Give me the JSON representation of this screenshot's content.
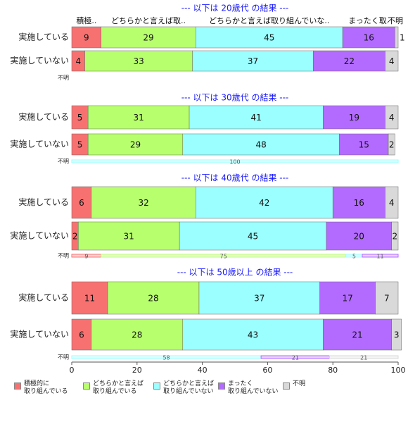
{
  "chart_data": [
    {
      "type": "stacked-barh",
      "title": "--- 以下は 20歳代 の結果 ---",
      "segment_labels": [
        "積極..",
        "どちらかと言えば取..",
        "どちらかと言えば取り組んでいな..",
        "まったく取.",
        "不明"
      ],
      "categories": [
        "実施している",
        "実施していない",
        "不明"
      ],
      "xlim": [
        0,
        100
      ],
      "series": [
        {
          "name": "積極的に\n取り組んでいる",
          "color": "#f87171",
          "values": [
            9,
            4,
            null
          ]
        },
        {
          "name": "どちらかと言えば\n取り組んでいる",
          "color": "#b8ff6e",
          "values": [
            29,
            33,
            null
          ]
        },
        {
          "name": "どちらかと言えば\n取り組んでいない",
          "color": "#9bffff",
          "values": [
            45,
            37,
            null
          ]
        },
        {
          "name": "まったく\n取り組んでいない",
          "color": "#b36bff",
          "values": [
            16,
            22,
            null
          ]
        },
        {
          "name": "不明",
          "color": "#d9d9d9",
          "values": [
            1,
            4,
            null
          ]
        }
      ]
    },
    {
      "type": "stacked-barh",
      "title": "--- 以下は 30歳代 の結果 ---",
      "categories": [
        "実施している",
        "実施していない",
        "不明"
      ],
      "xlim": [
        0,
        100
      ],
      "series": [
        {
          "color": "#f87171",
          "values": [
            5,
            5,
            null
          ]
        },
        {
          "color": "#b8ff6e",
          "values": [
            31,
            29,
            null
          ]
        },
        {
          "color": "#9bffff",
          "values": [
            41,
            48,
            100
          ]
        },
        {
          "color": "#b36bff",
          "values": [
            19,
            15,
            null
          ]
        },
        {
          "color": "#d9d9d9",
          "values": [
            4,
            2,
            null
          ]
        }
      ]
    },
    {
      "type": "stacked-barh",
      "title": "--- 以下は 40歳代 の結果 ---",
      "categories": [
        "実施している",
        "実施していない",
        "不明"
      ],
      "xlim": [
        0,
        100
      ],
      "series": [
        {
          "color": "#f87171",
          "values": [
            6,
            2,
            9
          ]
        },
        {
          "color": "#b8ff6e",
          "values": [
            32,
            31,
            75
          ]
        },
        {
          "color": "#9bffff",
          "values": [
            42,
            45,
            5
          ]
        },
        {
          "color": "#b36bff",
          "values": [
            16,
            20,
            11
          ]
        },
        {
          "color": "#d9d9d9",
          "values": [
            4,
            2,
            null
          ]
        }
      ]
    },
    {
      "type": "stacked-barh",
      "title": "--- 以下は 50歳以上 の結果 ---",
      "categories": [
        "実施している",
        "実施していない",
        "不明"
      ],
      "xlim": [
        0,
        100
      ],
      "xticks": [
        0,
        20,
        40,
        60,
        80,
        100
      ],
      "series": [
        {
          "color": "#f87171",
          "values": [
            11,
            6,
            null
          ]
        },
        {
          "color": "#b8ff6e",
          "values": [
            28,
            28,
            null
          ]
        },
        {
          "color": "#9bffff",
          "values": [
            37,
            43,
            58
          ]
        },
        {
          "color": "#b36bff",
          "values": [
            17,
            21,
            21
          ]
        },
        {
          "color": "#d9d9d9",
          "values": [
            7,
            3,
            21
          ]
        }
      ]
    }
  ]
}
